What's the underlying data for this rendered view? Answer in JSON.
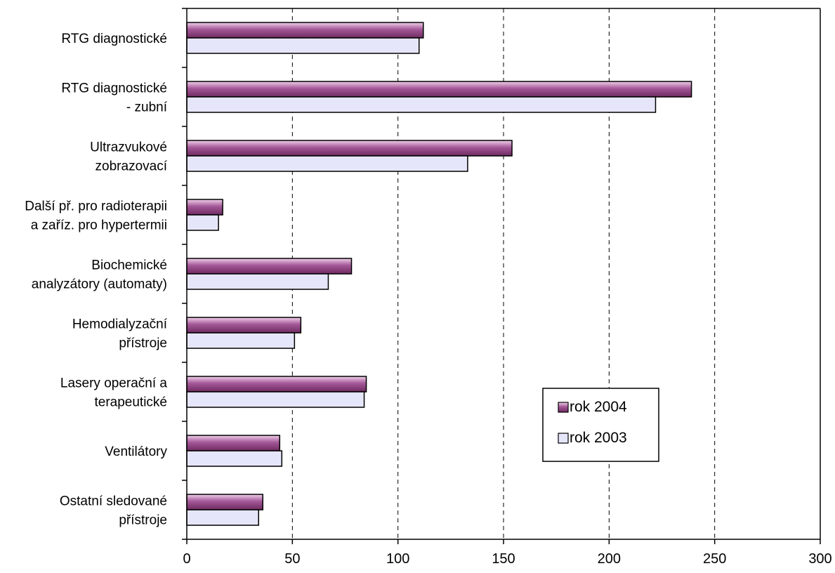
{
  "chart_data": {
    "type": "bar",
    "orientation": "horizontal",
    "title": "",
    "xlabel": "",
    "ylabel": "",
    "xlim": [
      0,
      300
    ],
    "xticks": [
      0,
      50,
      100,
      150,
      200,
      250,
      300
    ],
    "grid": "vertical-dashed",
    "legend_position": "center-right",
    "categories": [
      [
        "RTG diagnostické"
      ],
      [
        "RTG diagnostické",
        "- zubní"
      ],
      [
        "Ultrazvukové",
        "zobrazovací"
      ],
      [
        "Další př. pro radioterapii",
        "a zaříz. pro hypertermii"
      ],
      [
        "Biochemické",
        "analyzátory (automaty)"
      ],
      [
        "Hemodialyzační",
        "přístroje"
      ],
      [
        "Lasery operační a",
        "terapeutické"
      ],
      [
        "Ventilátory"
      ],
      [
        "Ostatní sledované",
        "přístroje"
      ]
    ],
    "series": [
      {
        "name": "rok 2004",
        "color": "#8e3f7e",
        "values": [
          112,
          239,
          154,
          17,
          78,
          54,
          85,
          44,
          36
        ]
      },
      {
        "name": "rok 2003",
        "color": "#e6e6fa",
        "values": [
          110,
          222,
          133,
          15,
          67,
          51,
          84,
          45,
          34
        ]
      }
    ]
  }
}
